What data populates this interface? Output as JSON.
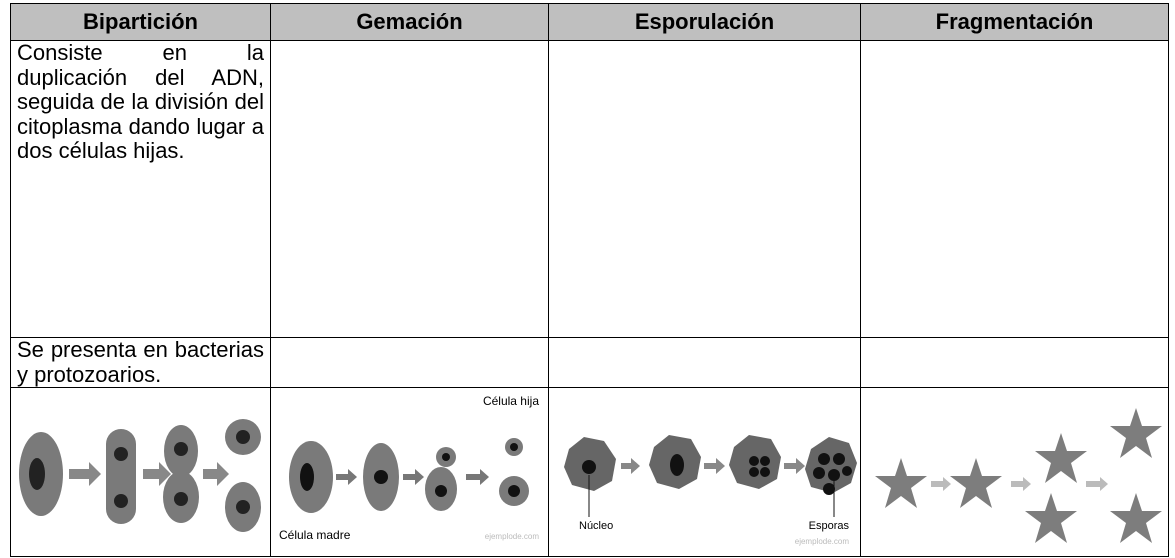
{
  "table": {
    "header": [
      "Bipartición",
      "Gemación",
      "Esporulación",
      "Fragmentación"
    ],
    "rows": [
      [
        "Consiste en la duplicación del ADN, seguida de la división del citoplasma dando lugar a dos células hijas."
      ],
      [
        "Se presenta en bacterias y protozoarios."
      ]
    ]
  },
  "images": {
    "gemacion": {
      "labels": [
        "Célula hija",
        "Célula madre",
        "ejemplode.com"
      ]
    },
    "esporulacion": {
      "labels": [
        "Núcleo",
        "Esporas",
        "ejemplode.com"
      ]
    }
  }
}
